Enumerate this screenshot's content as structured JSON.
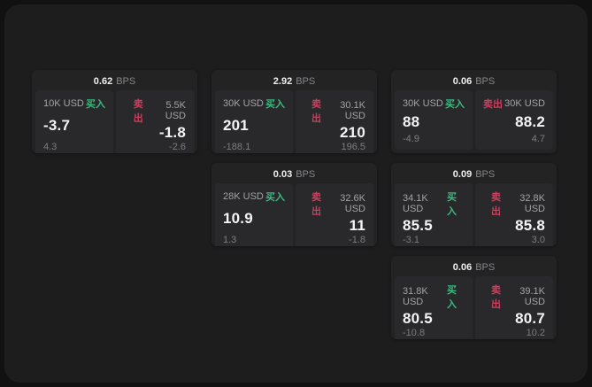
{
  "labels": {
    "bps": "BPS",
    "buy": "买入",
    "sell": "卖出"
  },
  "colors": {
    "outer_background": "#111112",
    "window_background": "#1d1d1e",
    "card_background": "#232324",
    "panel_background": "#29292b",
    "buy_accent": "#3aba7e",
    "sell_accent": "#ca3f5e",
    "price_text": "#f4f4f4",
    "muted_text": "#7d7d81"
  },
  "cards": [
    {
      "grid": {
        "row": 1,
        "col": 1
      },
      "spread": "0.62",
      "buy": {
        "size": "10K USD",
        "price": "-3.7",
        "change": "4.3"
      },
      "sell": {
        "size": "5.5K USD",
        "price": "-1.8",
        "change": "-2.6"
      }
    },
    {
      "grid": {
        "row": 1,
        "col": 2
      },
      "spread": "2.92",
      "buy": {
        "size": "30K USD",
        "price": "201",
        "change": "-188.1"
      },
      "sell": {
        "size": "30.1K USD",
        "price": "210",
        "change": "196.5"
      }
    },
    {
      "grid": {
        "row": 1,
        "col": 3
      },
      "spread": "0.06",
      "buy": {
        "size": "30K USD",
        "price": "88",
        "change": "-4.9"
      },
      "sell": {
        "size": "30K USD",
        "price": "88.2",
        "change": "4.7"
      }
    },
    {
      "grid": {
        "row": 2,
        "col": 2
      },
      "spread": "0.03",
      "buy": {
        "size": "28K USD",
        "price": "10.9",
        "change": "1.3"
      },
      "sell": {
        "size": "32.6K USD",
        "price": "11",
        "change": "-1.8"
      }
    },
    {
      "grid": {
        "row": 2,
        "col": 3
      },
      "spread": "0.09",
      "buy": {
        "size": "34.1K USD",
        "price": "85.5",
        "change": "-3.1"
      },
      "sell": {
        "size": "32.8K USD",
        "price": "85.8",
        "change": "3.0"
      }
    },
    {
      "grid": {
        "row": 3,
        "col": 3
      },
      "spread": "0.06",
      "buy": {
        "size": "31.8K USD",
        "price": "80.5",
        "change": "-10.8"
      },
      "sell": {
        "size": "39.1K USD",
        "price": "80.7",
        "change": "10.2"
      }
    }
  ]
}
